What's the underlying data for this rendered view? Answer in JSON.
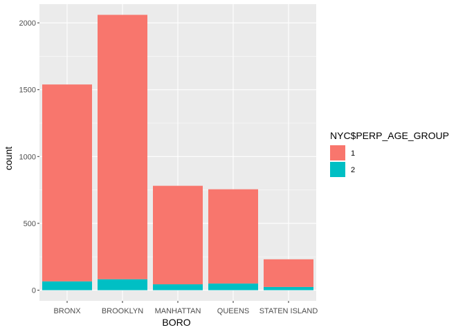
{
  "chart_data": {
    "type": "bar",
    "stacked": true,
    "xlabel": "BORO",
    "ylabel": "count",
    "categories": [
      "BRONX",
      "BROOKLYN",
      "MANHATTAN",
      "QUEENS",
      "STATEN ISLAND"
    ],
    "series": [
      {
        "name": "1",
        "color": "#F8766D",
        "values": [
          1473,
          1978,
          737,
          705,
          207
        ]
      },
      {
        "name": "2",
        "color": "#00BFC4",
        "values": [
          66,
          82,
          44,
          50,
          24
        ]
      }
    ],
    "ylim": [
      -80,
      2140
    ],
    "yticks": [
      0,
      500,
      1000,
      1500,
      2000
    ],
    "grid": true,
    "panel_background": "#EBEBEB",
    "grid_color": "#FFFFFF",
    "tick_color": "#333333",
    "legend": {
      "title": "NYC$PERP_AGE_GROUP",
      "position": "right"
    }
  }
}
